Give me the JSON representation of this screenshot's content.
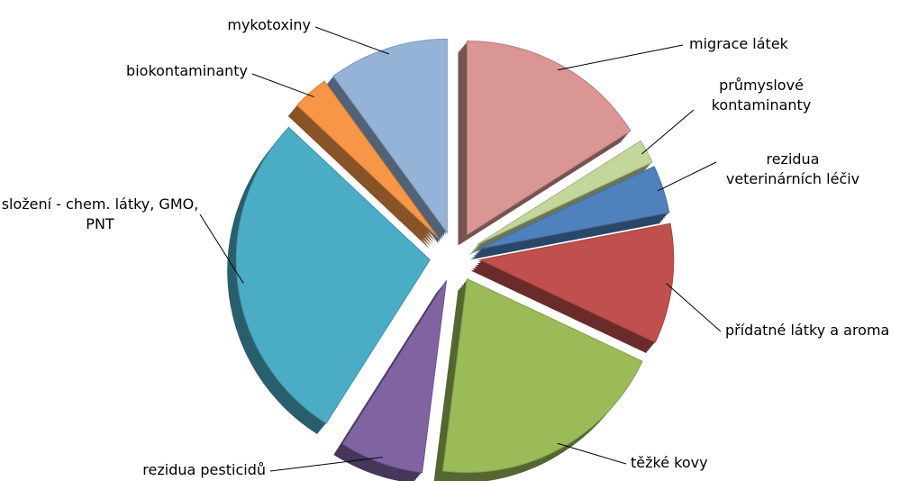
{
  "chart_data": {
    "type": "pie",
    "categories": [
      "migrace látek",
      "průmyslové kontaminanty",
      "rezidua veterinárních léčiv",
      "přídatné látky a aroma",
      "těžké kovy",
      "rezidua pesticidů",
      "složení - chem. látky, GMO, PNT",
      "biokontaminanty",
      "mykotoxiny"
    ],
    "values": [
      16,
      2,
      4,
      10,
      20,
      7,
      28,
      3,
      10
    ],
    "colors": [
      "#d99694",
      "#c3d69b",
      "#4f81bd",
      "#c0504d",
      "#9bbb59",
      "#8064a2",
      "#4bacc6",
      "#f79646",
      "#95b3d7"
    ]
  }
}
